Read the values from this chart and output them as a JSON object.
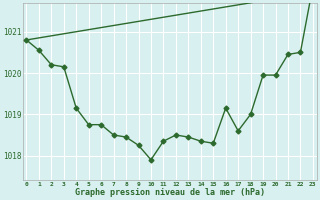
{
  "hours": [
    0,
    1,
    2,
    3,
    4,
    5,
    6,
    7,
    8,
    9,
    10,
    11,
    12,
    13,
    14,
    15,
    16,
    17,
    18,
    19,
    20,
    21,
    22,
    23
  ],
  "line1": [
    1020.8,
    1020.85,
    1020.9,
    1020.95,
    1021.0,
    1021.05,
    1021.1,
    1021.15,
    1021.2,
    1021.25,
    1021.3,
    1021.35,
    1021.4,
    1021.45,
    1021.5,
    1021.55,
    1021.6,
    1021.65,
    1021.7,
    1021.75,
    1021.8,
    1021.85,
    1021.9,
    1022.1
  ],
  "line2": [
    1020.8,
    1020.55,
    1020.2,
    1020.15,
    1019.15,
    1018.75,
    1018.75,
    1018.5,
    1018.45,
    1018.25,
    1017.9,
    1018.35,
    1018.5,
    1018.45,
    1018.35,
    1018.3,
    1019.15,
    1018.6,
    1019.0,
    1019.95,
    1019.95,
    1020.45,
    1020.5,
    1022.1
  ],
  "line_color": "#2d6a2d",
  "bg_color": "#d8f0f0",
  "grid_color": "#ffffff",
  "ylabel_ticks": [
    1018,
    1019,
    1020,
    1021
  ],
  "ylim": [
    1017.4,
    1021.7
  ],
  "xlim": [
    -0.3,
    23.3
  ],
  "xlabel": "Graphe pression niveau de la mer (hPa)",
  "marker": "D",
  "markersize": 2.5,
  "linewidth": 1.0
}
